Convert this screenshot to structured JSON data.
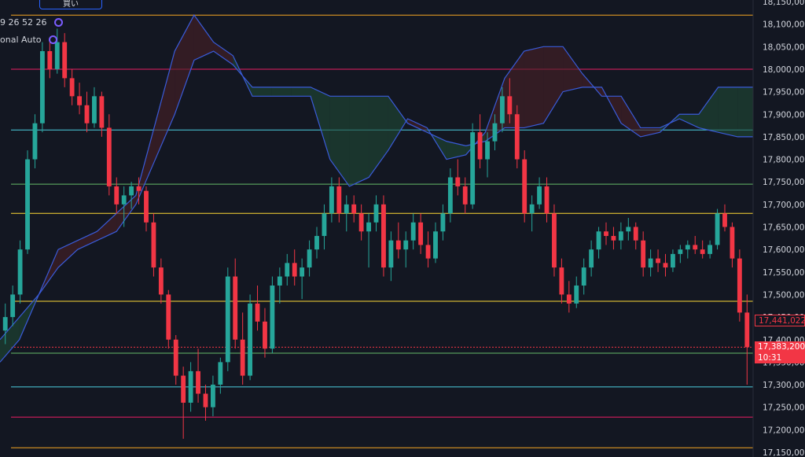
{
  "toolbar": {
    "buy_label": "買い",
    "ohlc_text": "9 26 52 26",
    "indicator_text": "onal Auto"
  },
  "colors": {
    "background": "#131722",
    "up": "#26a69a",
    "down": "#f23645",
    "cloud_line": "#3a5bd9",
    "cloud_up": "#1f4a35",
    "cloud_down": "#4a1f26",
    "axis_text": "#d1d4dc"
  },
  "price_tags": {
    "prev": "17,441,022",
    "last": "17,383,200",
    "countdown": "10:31"
  },
  "chart_data": {
    "type": "candlestick",
    "y_axis": {
      "range": [
        17150000,
        18150000
      ],
      "ticks": [
        "17,150,000",
        "17,200,000",
        "17,250,000",
        "17,300,000",
        "17,350,000",
        "17,400,000",
        "17,450,000",
        "17,500,000",
        "17,550,000",
        "17,600,000",
        "17,650,000",
        "17,700,000",
        "17,750,000",
        "17,800,000",
        "17,850,000",
        "17,900,000",
        "17,950,000",
        "18,000,000",
        "18,050,000",
        "18,100,000",
        "18,150,000"
      ],
      "position": "right"
    },
    "horizontal_levels": [
      {
        "price": 18120000,
        "color": "#f5a623"
      },
      {
        "price": 18000000,
        "color": "#e91e63"
      },
      {
        "price": 17865000,
        "color": "#4dd0e1"
      },
      {
        "price": 17745000,
        "color": "#66bb6a"
      },
      {
        "price": 17680000,
        "color": "#fdd835"
      },
      {
        "price": 17485000,
        "color": "#fdd835"
      },
      {
        "price": 17383200,
        "color": "#f23645",
        "dotted": true
      },
      {
        "price": 17370000,
        "color": "#66bb6a"
      },
      {
        "price": 17295000,
        "color": "#4dd0e1"
      },
      {
        "price": 17228000,
        "color": "#e91e63"
      },
      {
        "price": 17160000,
        "color": "#f5a623"
      }
    ],
    "candles": [
      [
        17420000,
        17480000,
        17390000,
        17450000
      ],
      [
        17450000,
        17520000,
        17430000,
        17500000
      ],
      [
        17500000,
        17620000,
        17480000,
        17600000
      ],
      [
        17600000,
        17820000,
        17590000,
        17800000
      ],
      [
        17800000,
        17900000,
        17780000,
        17880000
      ],
      [
        17880000,
        18060000,
        17860000,
        18040000
      ],
      [
        18040000,
        18070000,
        17980000,
        18000000
      ],
      [
        18000000,
        18090000,
        17990000,
        18060000
      ],
      [
        18060000,
        18080000,
        17960000,
        17980000
      ],
      [
        17980000,
        18000000,
        17920000,
        17940000
      ],
      [
        17940000,
        17970000,
        17900000,
        17920000
      ],
      [
        17920000,
        17950000,
        17860000,
        17880000
      ],
      [
        17880000,
        17960000,
        17870000,
        17940000
      ],
      [
        17940000,
        17950000,
        17850000,
        17870000
      ],
      [
        17870000,
        17900000,
        17720000,
        17740000
      ],
      [
        17740000,
        17760000,
        17680000,
        17700000
      ],
      [
        17700000,
        17740000,
        17650000,
        17720000
      ],
      [
        17720000,
        17750000,
        17690000,
        17740000
      ],
      [
        17740000,
        17760000,
        17700000,
        17730000
      ],
      [
        17730000,
        17740000,
        17640000,
        17660000
      ],
      [
        17660000,
        17680000,
        17540000,
        17560000
      ],
      [
        17560000,
        17580000,
        17480000,
        17500000
      ],
      [
        17500000,
        17510000,
        17380000,
        17400000
      ],
      [
        17400000,
        17410000,
        17300000,
        17320000
      ],
      [
        17320000,
        17340000,
        17180000,
        17260000
      ],
      [
        17260000,
        17350000,
        17240000,
        17330000
      ],
      [
        17330000,
        17380000,
        17260000,
        17280000
      ],
      [
        17280000,
        17300000,
        17220000,
        17250000
      ],
      [
        17250000,
        17320000,
        17230000,
        17300000
      ],
      [
        17300000,
        17360000,
        17280000,
        17350000
      ],
      [
        17350000,
        17560000,
        17330000,
        17540000
      ],
      [
        17540000,
        17580000,
        17380000,
        17400000
      ],
      [
        17400000,
        17460000,
        17300000,
        17320000
      ],
      [
        17320000,
        17500000,
        17310000,
        17480000
      ],
      [
        17480000,
        17520000,
        17420000,
        17440000
      ],
      [
        17440000,
        17470000,
        17360000,
        17380000
      ],
      [
        17380000,
        17540000,
        17370000,
        17520000
      ],
      [
        17520000,
        17560000,
        17480000,
        17540000
      ],
      [
        17540000,
        17590000,
        17520000,
        17570000
      ],
      [
        17570000,
        17600000,
        17520000,
        17540000
      ],
      [
        17540000,
        17580000,
        17490000,
        17560000
      ],
      [
        17560000,
        17620000,
        17540000,
        17600000
      ],
      [
        17600000,
        17650000,
        17580000,
        17630000
      ],
      [
        17630000,
        17700000,
        17600000,
        17680000
      ],
      [
        17680000,
        17760000,
        17660000,
        17740000
      ],
      [
        17740000,
        17760000,
        17660000,
        17680000
      ],
      [
        17680000,
        17720000,
        17640000,
        17700000
      ],
      [
        17700000,
        17720000,
        17660000,
        17680000
      ],
      [
        17680000,
        17700000,
        17620000,
        17640000
      ],
      [
        17640000,
        17680000,
        17560000,
        17660000
      ],
      [
        17660000,
        17720000,
        17640000,
        17700000
      ],
      [
        17700000,
        17720000,
        17540000,
        17560000
      ],
      [
        17560000,
        17640000,
        17530000,
        17620000
      ],
      [
        17620000,
        17660000,
        17580000,
        17600000
      ],
      [
        17600000,
        17640000,
        17560000,
        17620000
      ],
      [
        17620000,
        17680000,
        17600000,
        17660000
      ],
      [
        17660000,
        17680000,
        17590000,
        17610000
      ],
      [
        17610000,
        17640000,
        17560000,
        17580000
      ],
      [
        17580000,
        17660000,
        17570000,
        17640000
      ],
      [
        17640000,
        17700000,
        17620000,
        17680000
      ],
      [
        17680000,
        17780000,
        17660000,
        17760000
      ],
      [
        17760000,
        17800000,
        17720000,
        17740000
      ],
      [
        17740000,
        17760000,
        17680000,
        17700000
      ],
      [
        17700000,
        17880000,
        17690000,
        17860000
      ],
      [
        17860000,
        17900000,
        17780000,
        17800000
      ],
      [
        17800000,
        17860000,
        17760000,
        17840000
      ],
      [
        17840000,
        17900000,
        17820000,
        17880000
      ],
      [
        17880000,
        17960000,
        17860000,
        17940000
      ],
      [
        17940000,
        17980000,
        17880000,
        17900000
      ],
      [
        17900000,
        17920000,
        17780000,
        17800000
      ],
      [
        17800000,
        17820000,
        17660000,
        17680000
      ],
      [
        17680000,
        17720000,
        17640000,
        17700000
      ],
      [
        17700000,
        17760000,
        17690000,
        17740000
      ],
      [
        17740000,
        17760000,
        17660000,
        17680000
      ],
      [
        17680000,
        17700000,
        17540000,
        17560000
      ],
      [
        17560000,
        17580000,
        17480000,
        17500000
      ],
      [
        17500000,
        17530000,
        17460000,
        17480000
      ],
      [
        17480000,
        17540000,
        17470000,
        17520000
      ],
      [
        17520000,
        17580000,
        17500000,
        17560000
      ],
      [
        17560000,
        17620000,
        17540000,
        17600000
      ],
      [
        17600000,
        17650000,
        17580000,
        17640000
      ],
      [
        17640000,
        17660000,
        17610000,
        17630000
      ],
      [
        17630000,
        17650000,
        17600000,
        17620000
      ],
      [
        17620000,
        17660000,
        17600000,
        17640000
      ],
      [
        17640000,
        17670000,
        17620000,
        17650000
      ],
      [
        17650000,
        17660000,
        17600000,
        17620000
      ],
      [
        17620000,
        17640000,
        17540000,
        17560000
      ],
      [
        17560000,
        17600000,
        17540000,
        17580000
      ],
      [
        17580000,
        17600000,
        17550000,
        17570000
      ],
      [
        17570000,
        17590000,
        17540000,
        17560000
      ],
      [
        17560000,
        17600000,
        17550000,
        17590000
      ],
      [
        17590000,
        17610000,
        17570000,
        17600000
      ],
      [
        17600000,
        17620000,
        17580000,
        17610000
      ],
      [
        17610000,
        17630000,
        17590000,
        17600000
      ],
      [
        17600000,
        17620000,
        17580000,
        17590000
      ],
      [
        17590000,
        17620000,
        17580000,
        17610000
      ],
      [
        17610000,
        17690000,
        17600000,
        17680000
      ],
      [
        17680000,
        17700000,
        17640000,
        17650000
      ],
      [
        17650000,
        17660000,
        17560000,
        17580000
      ],
      [
        17580000,
        17600000,
        17440000,
        17460000
      ],
      [
        17460000,
        17500000,
        17300000,
        17383200
      ]
    ],
    "ichimoku": {
      "span_a": [
        17400000,
        17450000,
        17500000,
        17560000,
        17600000,
        17620000,
        17640000,
        17700000,
        17800000,
        17900000,
        18020000,
        18040000,
        18010000,
        17960000,
        17960000,
        17960000,
        17960000,
        17940000,
        17940000,
        17940000,
        17940000,
        17880000,
        17860000,
        17840000,
        17830000,
        17840000,
        17870000,
        17870000,
        17880000,
        17950000,
        17960000,
        17960000,
        17880000,
        17850000,
        17860000,
        17900000,
        17900000,
        17960000,
        17960000,
        17960000
      ],
      "span_b": [
        17350000,
        17400000,
        17500000,
        17600000,
        17620000,
        17640000,
        17680000,
        17720000,
        17880000,
        18040000,
        18120000,
        18060000,
        18030000,
        17940000,
        17940000,
        17940000,
        17940000,
        17800000,
        17740000,
        17760000,
        17820000,
        17890000,
        17870000,
        17800000,
        17810000,
        17860000,
        17980000,
        18040000,
        18050000,
        18050000,
        17990000,
        17940000,
        17940000,
        17870000,
        17870000,
        17890000,
        17870000,
        17860000,
        17850000,
        17850000
      ]
    }
  }
}
